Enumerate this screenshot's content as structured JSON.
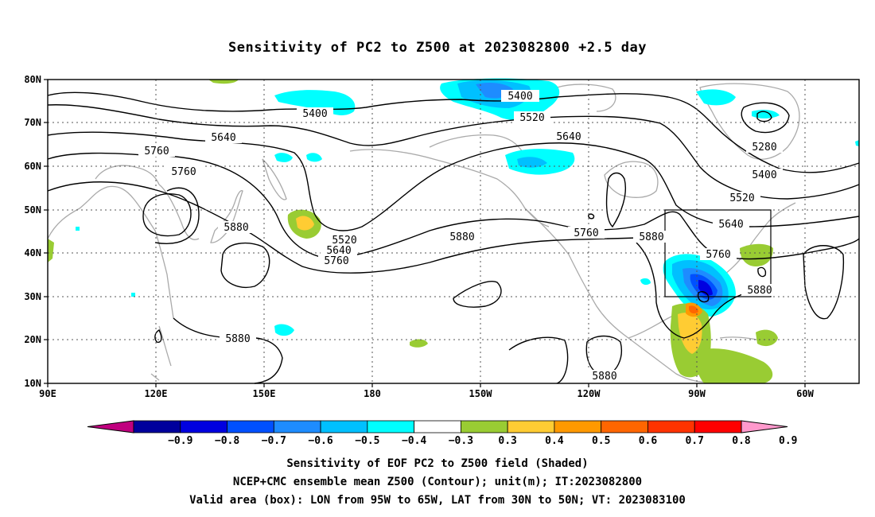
{
  "title": "Sensitivity of PC2 to Z500 at 2023082800 +2.5 day",
  "map": {
    "lat_ticks": [
      "80N",
      "70N",
      "60N",
      "50N",
      "40N",
      "30N",
      "20N",
      "10N"
    ],
    "lon_ticks": [
      "90E",
      "120E",
      "150E",
      "180",
      "150W",
      "120W",
      "90W",
      "60W"
    ],
    "contour_labels": [
      "5400",
      "5400",
      "5520",
      "5640",
      "5640",
      "5760",
      "5760",
      "5880",
      "5520",
      "5640",
      "5760",
      "5880",
      "5760",
      "5880",
      "5280",
      "5400",
      "5520",
      "5640",
      "5760",
      "5880",
      "5880",
      "5880"
    ],
    "valid_box": {
      "lon_from": "95W",
      "lon_to": "65W",
      "lat_from": "30N",
      "lat_to": "50N"
    }
  },
  "colorbar": {
    "labels": [
      "−0.9",
      "−0.8",
      "−0.7",
      "−0.6",
      "−0.5",
      "−0.4",
      "−0.3",
      "0.3",
      "0.4",
      "0.5",
      "0.6",
      "0.7",
      "0.8",
      "0.9"
    ],
    "colors": [
      "#c0007f",
      "#00009c",
      "#0000e0",
      "#0050ff",
      "#1e8cff",
      "#00c0ff",
      "#00ffff",
      "#ffffff",
      "#99cc33",
      "#ffcc33",
      "#ff9900",
      "#ff6600",
      "#ff3300",
      "#ff0000",
      "#ff99cc"
    ]
  },
  "captions": [
    "Sensitivity of EOF PC2 to Z500 field (Shaded)",
    "NCEP+CMC ensemble mean Z500 (Contour); unit(m); IT:2023082800",
    "Valid area (box): LON from 95W to 65W, LAT from 30N to 50N; VT: 2023083100"
  ]
}
